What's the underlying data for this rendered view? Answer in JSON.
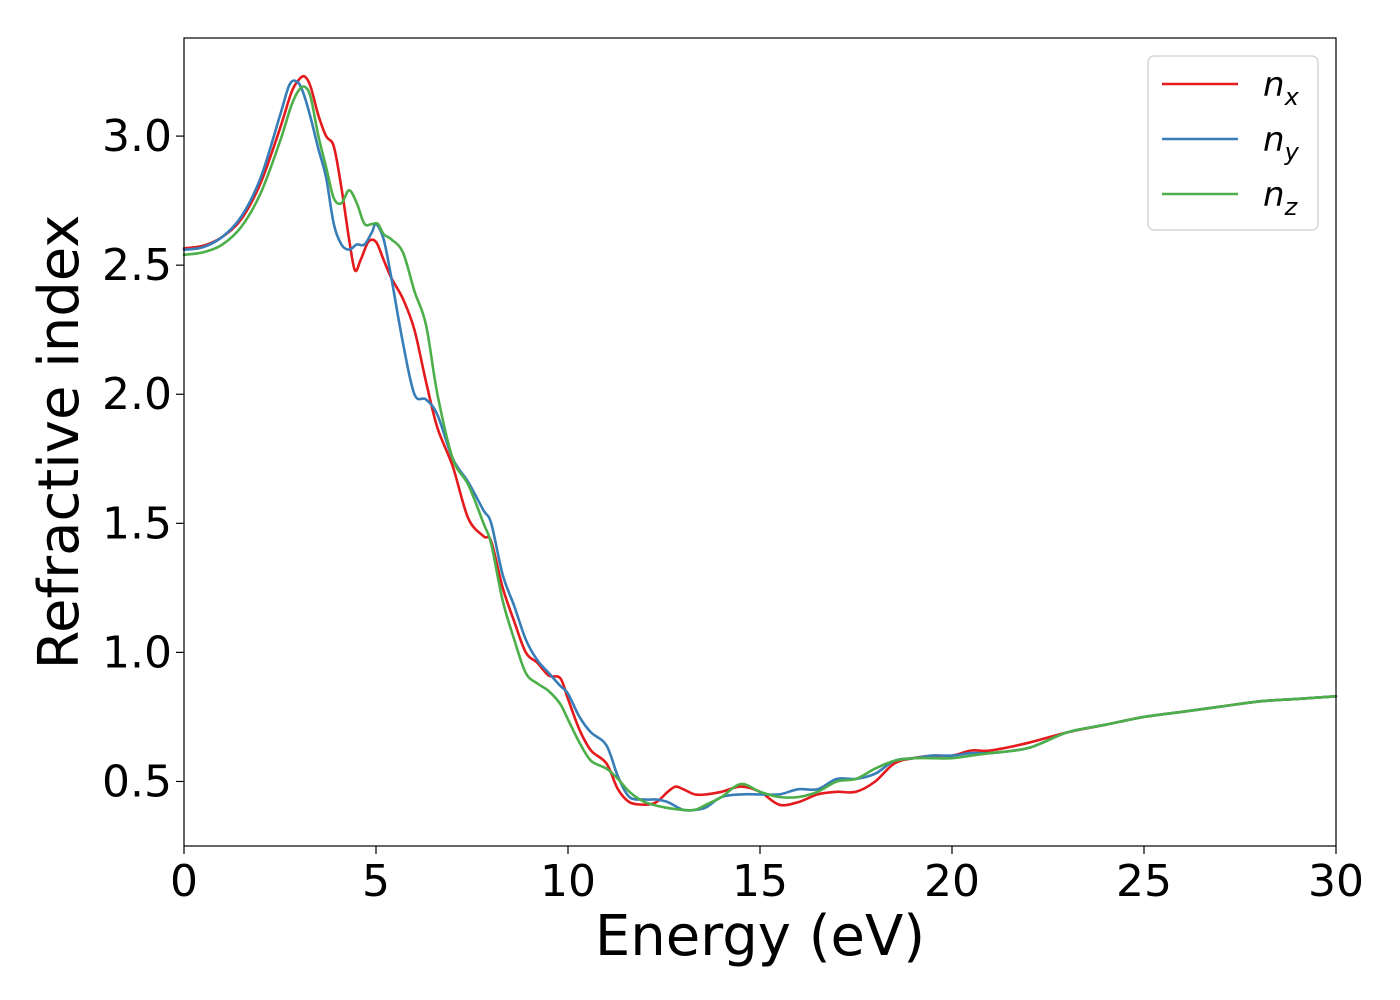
{
  "chart_data": {
    "type": "line",
    "xlabel": "Energy (eV)",
    "ylabel": "Refractive index",
    "xlim": [
      0,
      30
    ],
    "ylim": [
      0.25,
      3.38
    ],
    "xticks": [
      0,
      5,
      10,
      15,
      20,
      25,
      30
    ],
    "yticks": [
      0.5,
      1.0,
      1.5,
      2.0,
      2.5,
      3.0
    ],
    "xtick_labels": [
      "0",
      "5",
      "10",
      "15",
      "20",
      "25",
      "30"
    ],
    "ytick_labels": [
      "0.5",
      "1.0",
      "1.5",
      "2.0",
      "2.5",
      "3.0"
    ],
    "grid": false,
    "legend_position": "top-right",
    "series": [
      {
        "name": "n",
        "subscript": "x",
        "color": "#e41a1c",
        "x": [
          0,
          0.5,
          1.0,
          1.5,
          2.0,
          2.5,
          2.8,
          3.0,
          3.15,
          3.3,
          3.5,
          3.7,
          3.9,
          4.1,
          4.3,
          4.45,
          4.6,
          4.8,
          5.0,
          5.2,
          5.4,
          5.7,
          6.0,
          6.3,
          6.6,
          7.0,
          7.4,
          7.8,
          8.0,
          8.3,
          8.6,
          8.9,
          9.2,
          9.5,
          9.8,
          10.0,
          10.3,
          10.6,
          11.0,
          11.3,
          11.6,
          12.0,
          12.3,
          12.6,
          12.8,
          13.0,
          13.3,
          13.6,
          14.0,
          14.5,
          15.0,
          15.5,
          16.0,
          16.5,
          17.0,
          17.5,
          18.0,
          18.5,
          19.0,
          19.5,
          20.0,
          20.5,
          21.0,
          22.0,
          23.0,
          24.0,
          25.0,
          26.0,
          27.0,
          28.0,
          29.0,
          30.0
        ],
        "values": [
          2.565,
          2.575,
          2.61,
          2.68,
          2.82,
          3.03,
          3.17,
          3.22,
          3.23,
          3.19,
          3.08,
          3.0,
          2.96,
          2.8,
          2.6,
          2.48,
          2.52,
          2.59,
          2.59,
          2.52,
          2.45,
          2.37,
          2.25,
          2.05,
          1.87,
          1.72,
          1.52,
          1.45,
          1.43,
          1.25,
          1.12,
          1.0,
          0.96,
          0.91,
          0.9,
          0.82,
          0.7,
          0.62,
          0.57,
          0.47,
          0.42,
          0.41,
          0.42,
          0.46,
          0.48,
          0.47,
          0.45,
          0.45,
          0.46,
          0.48,
          0.46,
          0.41,
          0.42,
          0.45,
          0.46,
          0.46,
          0.5,
          0.57,
          0.59,
          0.6,
          0.6,
          0.62,
          0.62,
          0.65,
          0.69,
          0.72,
          0.75,
          0.77,
          0.79,
          0.81,
          0.82,
          0.83
        ]
      },
      {
        "name": "n",
        "subscript": "y",
        "color": "#377eb8",
        "x": [
          0,
          0.5,
          1.0,
          1.5,
          2.0,
          2.5,
          2.75,
          2.95,
          3.1,
          3.3,
          3.5,
          3.7,
          3.9,
          4.1,
          4.3,
          4.5,
          4.7,
          4.9,
          5.0,
          5.2,
          5.4,
          5.7,
          6.0,
          6.3,
          6.6,
          7.0,
          7.4,
          7.8,
          8.0,
          8.3,
          8.6,
          8.9,
          9.2,
          9.5,
          9.8,
          10.0,
          10.3,
          10.6,
          11.0,
          11.3,
          11.6,
          12.0,
          12.3,
          12.6,
          13.0,
          13.3,
          13.6,
          14.0,
          14.5,
          15.0,
          15.5,
          16.0,
          16.5,
          17.0,
          17.5,
          18.0,
          18.5,
          19.0,
          19.5,
          20.0,
          20.5,
          21.0,
          22.0,
          23.0,
          24.0,
          25.0,
          26.0,
          27.0,
          28.0,
          29.0,
          30.0
        ],
        "values": [
          2.56,
          2.57,
          2.61,
          2.69,
          2.84,
          3.08,
          3.2,
          3.21,
          3.17,
          3.07,
          2.95,
          2.84,
          2.66,
          2.58,
          2.56,
          2.58,
          2.58,
          2.63,
          2.66,
          2.6,
          2.45,
          2.2,
          2.0,
          1.98,
          1.92,
          1.75,
          1.66,
          1.55,
          1.5,
          1.3,
          1.18,
          1.05,
          0.97,
          0.92,
          0.87,
          0.84,
          0.75,
          0.69,
          0.64,
          0.52,
          0.44,
          0.43,
          0.43,
          0.42,
          0.39,
          0.39,
          0.4,
          0.44,
          0.45,
          0.45,
          0.45,
          0.47,
          0.47,
          0.51,
          0.51,
          0.53,
          0.58,
          0.59,
          0.6,
          0.6,
          0.61,
          0.61,
          0.63,
          0.69,
          0.72,
          0.75,
          0.77,
          0.79,
          0.81,
          0.82,
          0.83
        ]
      },
      {
        "name": "n",
        "subscript": "z",
        "color": "#4daf4a",
        "x": [
          0,
          0.5,
          1.0,
          1.5,
          2.0,
          2.5,
          2.8,
          3.0,
          3.15,
          3.3,
          3.5,
          3.7,
          3.9,
          4.1,
          4.3,
          4.5,
          4.7,
          4.9,
          5.05,
          5.2,
          5.4,
          5.7,
          6.0,
          6.3,
          6.6,
          7.0,
          7.4,
          7.8,
          8.0,
          8.3,
          8.6,
          8.9,
          9.2,
          9.5,
          9.8,
          10.0,
          10.3,
          10.6,
          11.0,
          11.3,
          11.6,
          12.0,
          12.5,
          13.0,
          13.3,
          13.6,
          14.0,
          14.5,
          15.0,
          15.5,
          16.0,
          16.5,
          17.0,
          17.5,
          18.0,
          18.5,
          19.0,
          19.5,
          20.0,
          20.5,
          21.0,
          22.0,
          23.0,
          24.0,
          25.0,
          26.0,
          27.0,
          28.0,
          29.0,
          30.0
        ],
        "values": [
          2.54,
          2.55,
          2.58,
          2.65,
          2.78,
          2.98,
          3.12,
          3.18,
          3.19,
          3.15,
          3.0,
          2.88,
          2.76,
          2.74,
          2.79,
          2.74,
          2.66,
          2.66,
          2.66,
          2.62,
          2.6,
          2.55,
          2.4,
          2.27,
          2.0,
          1.75,
          1.65,
          1.5,
          1.42,
          1.2,
          1.05,
          0.92,
          0.88,
          0.85,
          0.8,
          0.74,
          0.65,
          0.58,
          0.55,
          0.51,
          0.46,
          0.42,
          0.4,
          0.39,
          0.39,
          0.41,
          0.44,
          0.49,
          0.46,
          0.44,
          0.44,
          0.46,
          0.5,
          0.51,
          0.55,
          0.58,
          0.59,
          0.59,
          0.59,
          0.6,
          0.61,
          0.63,
          0.69,
          0.72,
          0.75,
          0.77,
          0.79,
          0.81,
          0.82,
          0.83
        ]
      }
    ]
  }
}
